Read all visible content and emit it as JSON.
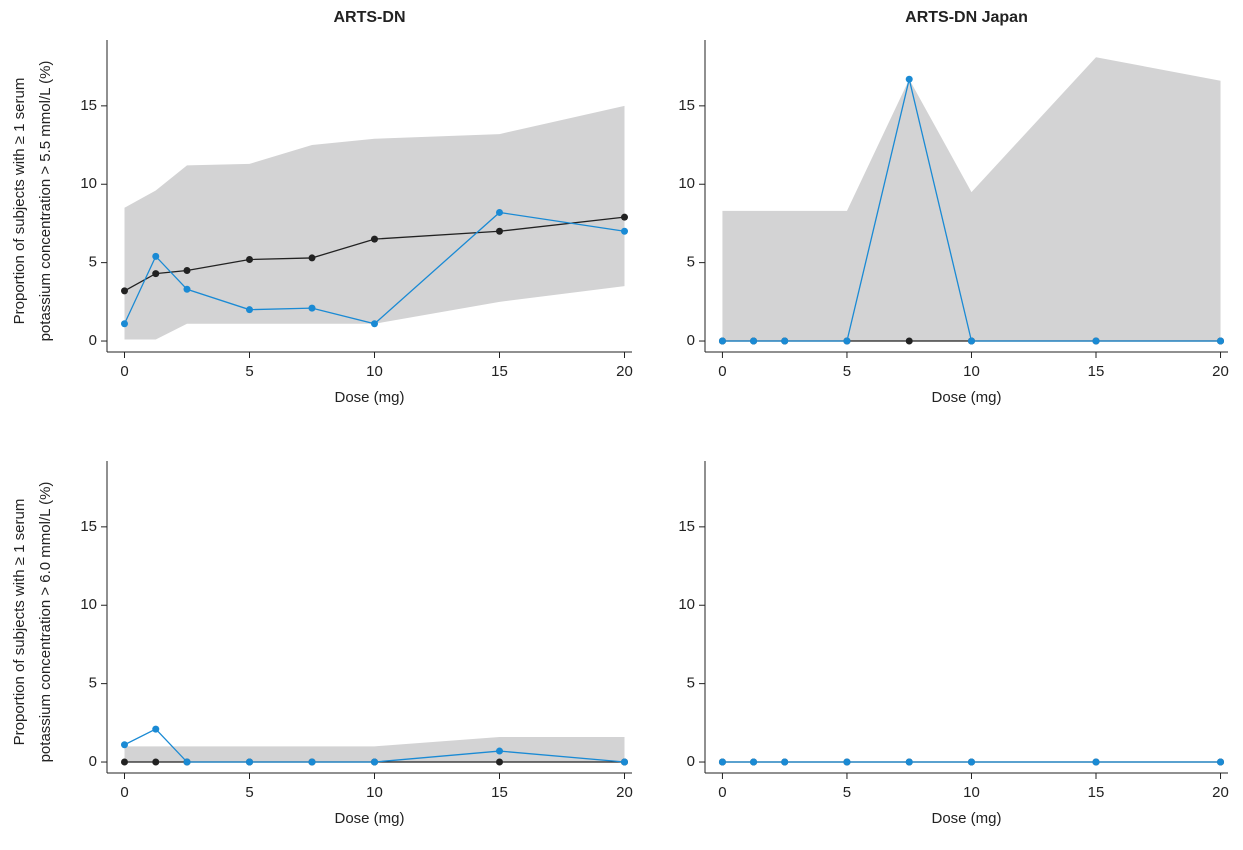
{
  "chart_data": [
    {
      "type": "line",
      "title": "ARTS-DN",
      "x_label": "Dose (mg)",
      "y_label": [
        "Proportion of subjects with ≥ 1 serum",
        "potassium concentration > 5.5 mmol/L (%)"
      ],
      "x": [
        0,
        1.25,
        2.5,
        5,
        7.5,
        10,
        15,
        20
      ],
      "band": {
        "color": "#d3d3d4",
        "upper": [
          8.5,
          9.6,
          11.2,
          11.3,
          12.5,
          12.9,
          13.2,
          15.0
        ],
        "lower": [
          0.1,
          0.1,
          1.1,
          1.1,
          1.1,
          1.1,
          2.5,
          3.5
        ]
      },
      "series": [
        {
          "color": "#222222",
          "values": [
            3.2,
            4.3,
            4.5,
            5.2,
            5.3,
            6.5,
            7.0,
            7.9
          ]
        },
        {
          "color": "#1a8ad4",
          "values": [
            1.1,
            5.4,
            3.3,
            2.0,
            2.1,
            1.1,
            8.2,
            7.0
          ]
        }
      ],
      "xlim": [
        -0.7,
        20.3
      ],
      "ylim": [
        -0.7,
        19.2
      ],
      "xticks": [
        0,
        5,
        10,
        15,
        20
      ],
      "yticks": [
        0,
        5,
        10,
        15
      ]
    },
    {
      "type": "line",
      "title": "ARTS-DN Japan",
      "x_label": "Dose (mg)",
      "x": [
        0,
        1.25,
        2.5,
        5,
        7.5,
        10,
        15,
        20
      ],
      "band": {
        "color": "#d3d3d4",
        "upper": [
          8.3,
          8.3,
          8.3,
          8.3,
          16.7,
          9.5,
          18.1,
          16.6
        ],
        "lower": [
          0,
          0,
          0,
          0,
          0,
          0,
          0,
          0
        ]
      },
      "series": [
        {
          "color": "#222222",
          "values": [
            0,
            0,
            0,
            0,
            0,
            0,
            0,
            0
          ]
        },
        {
          "color": "#1a8ad4",
          "values": [
            0,
            0,
            0,
            0,
            16.7,
            0,
            0,
            0
          ]
        }
      ],
      "xlim": [
        -0.7,
        20.3
      ],
      "ylim": [
        -0.7,
        19.2
      ],
      "xticks": [
        0,
        5,
        10,
        15,
        20
      ],
      "yticks": [
        0,
        5,
        10,
        15
      ]
    },
    {
      "type": "line",
      "x_label": "Dose (mg)",
      "y_label": [
        "Proportion of subjects with ≥ 1 serum",
        "potassium concentration > 6.0 mmol/L (%)"
      ],
      "x": [
        0,
        1.25,
        2.5,
        5,
        7.5,
        10,
        15,
        20
      ],
      "band": {
        "color": "#d3d3d4",
        "upper": [
          1.0,
          1.0,
          1.0,
          1.0,
          1.0,
          1.0,
          1.6,
          1.6
        ],
        "lower": [
          0,
          0,
          0,
          0,
          0,
          0,
          0,
          0
        ]
      },
      "series": [
        {
          "color": "#222222",
          "values": [
            0,
            0,
            0,
            0,
            0,
            0,
            0,
            0
          ]
        },
        {
          "color": "#1a8ad4",
          "values": [
            1.1,
            2.1,
            0,
            0,
            0,
            0,
            0.7,
            0
          ]
        }
      ],
      "xlim": [
        -0.7,
        20.3
      ],
      "ylim": [
        -0.7,
        19.2
      ],
      "xticks": [
        0,
        5,
        10,
        15,
        20
      ],
      "yticks": [
        0,
        5,
        10,
        15
      ]
    },
    {
      "type": "line",
      "x_label": "Dose (mg)",
      "x": [
        0,
        1.25,
        2.5,
        5,
        7.5,
        10,
        15,
        20
      ],
      "series": [
        {
          "color": "#222222",
          "values": [
            0,
            0,
            0,
            0,
            0,
            0,
            0,
            0
          ]
        },
        {
          "color": "#1a8ad4",
          "values": [
            0,
            0,
            0,
            0,
            0,
            0,
            0,
            0
          ]
        }
      ],
      "xlim": [
        -0.7,
        20.3
      ],
      "ylim": [
        -0.7,
        19.2
      ],
      "xticks": [
        0,
        5,
        10,
        15,
        20
      ],
      "yticks": [
        0,
        5,
        10,
        15
      ]
    }
  ]
}
